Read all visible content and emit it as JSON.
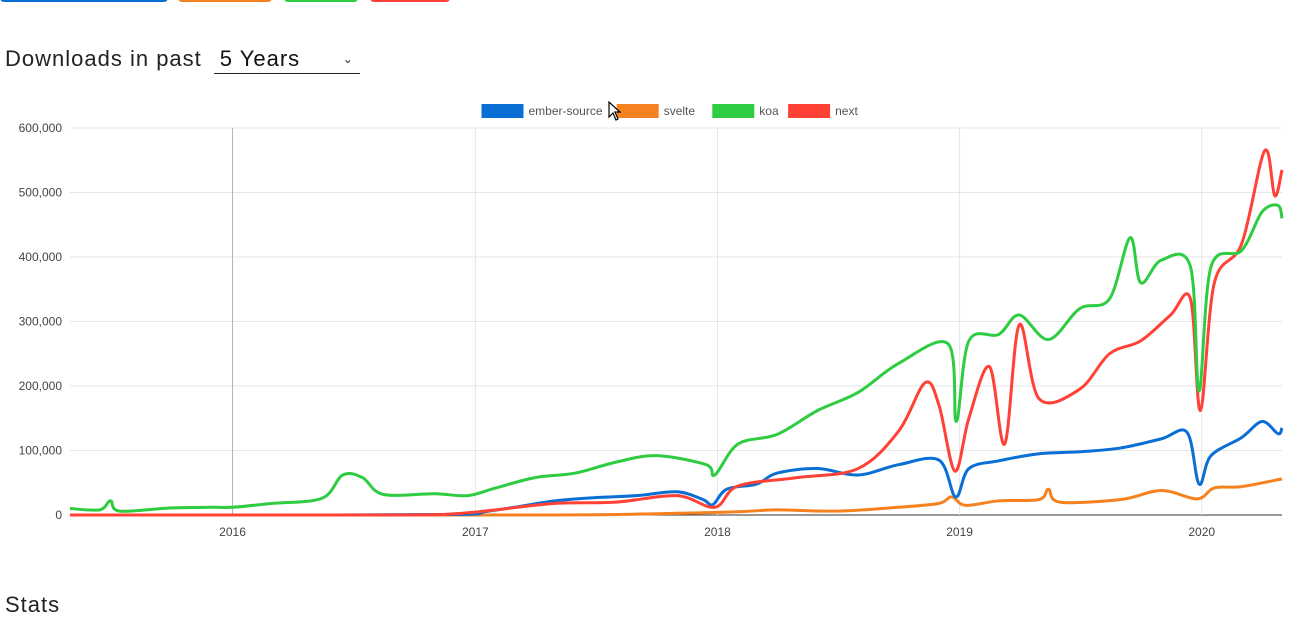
{
  "header": {
    "range_label": "Downloads in past",
    "range_value": "5 Years"
  },
  "tabs": [
    {
      "color": "#0a6fd4"
    },
    {
      "color": "#f6821f"
    },
    {
      "color": "#2ecc40"
    },
    {
      "color": "#ff4136"
    }
  ],
  "section_title": "Stats",
  "chart_data": {
    "type": "line",
    "xlabel": "",
    "ylabel": "",
    "ylim": [
      0,
      600000
    ],
    "yticks": [
      0,
      100000,
      200000,
      300000,
      400000,
      500000,
      600000
    ],
    "ytick_labels": [
      "0",
      "100,000",
      "200,000",
      "300,000",
      "400,000",
      "500,000",
      "600,000"
    ],
    "xticks": [
      "2016",
      "2017",
      "2018",
      "2019",
      "2020"
    ],
    "xrange": [
      "2015-05-01",
      "2020-05-01"
    ],
    "grid": true,
    "legend_position": "top-center",
    "series": [
      {
        "name": "ember-source",
        "color": "#0a6fd4",
        "points": [
          [
            "2015-05-01",
            0
          ],
          [
            "2016-06-01",
            0
          ],
          [
            "2016-12-15",
            1000
          ],
          [
            "2017-01-15",
            5000
          ],
          [
            "2017-03-01",
            12000
          ],
          [
            "2017-05-01",
            22000
          ],
          [
            "2017-07-01",
            27000
          ],
          [
            "2017-09-01",
            30000
          ],
          [
            "2017-11-01",
            36000
          ],
          [
            "2017-12-10",
            24000
          ],
          [
            "2017-12-25",
            16000
          ],
          [
            "2018-01-15",
            40000
          ],
          [
            "2018-03-01",
            48000
          ],
          [
            "2018-04-01",
            65000
          ],
          [
            "2018-06-01",
            72000
          ],
          [
            "2018-08-01",
            62000
          ],
          [
            "2018-10-01",
            78000
          ],
          [
            "2018-12-01",
            85000
          ],
          [
            "2018-12-26",
            28000
          ],
          [
            "2019-01-15",
            72000
          ],
          [
            "2019-03-01",
            84000
          ],
          [
            "2019-05-01",
            95000
          ],
          [
            "2019-07-01",
            98000
          ],
          [
            "2019-09-01",
            104000
          ],
          [
            "2019-11-01",
            118000
          ],
          [
            "2019-12-10",
            128000
          ],
          [
            "2019-12-28",
            48000
          ],
          [
            "2020-01-15",
            92000
          ],
          [
            "2020-03-01",
            120000
          ],
          [
            "2020-04-01",
            145000
          ],
          [
            "2020-04-25",
            126000
          ],
          [
            "2020-05-01",
            135000
          ]
        ]
      },
      {
        "name": "svelte",
        "color": "#f6821f",
        "points": [
          [
            "2015-05-01",
            0
          ],
          [
            "2017-04-01",
            0
          ],
          [
            "2017-10-01",
            2000
          ],
          [
            "2018-02-01",
            5000
          ],
          [
            "2018-04-01",
            8000
          ],
          [
            "2018-07-01",
            6000
          ],
          [
            "2018-10-01",
            12000
          ],
          [
            "2018-12-01",
            18000
          ],
          [
            "2018-12-20",
            28000
          ],
          [
            "2019-01-10",
            15000
          ],
          [
            "2019-03-01",
            22000
          ],
          [
            "2019-05-01",
            24000
          ],
          [
            "2019-05-15",
            40000
          ],
          [
            "2019-06-01",
            20000
          ],
          [
            "2019-09-01",
            24000
          ],
          [
            "2019-11-01",
            38000
          ],
          [
            "2019-12-25",
            25000
          ],
          [
            "2020-01-20",
            42000
          ],
          [
            "2020-03-01",
            44000
          ],
          [
            "2020-05-01",
            56000
          ]
        ]
      },
      {
        "name": "koa",
        "color": "#2ecc40",
        "points": [
          [
            "2015-05-01",
            10000
          ],
          [
            "2015-06-15",
            8000
          ],
          [
            "2015-07-01",
            22000
          ],
          [
            "2015-07-15",
            6000
          ],
          [
            "2015-10-01",
            11000
          ],
          [
            "2015-12-01",
            12000
          ],
          [
            "2016-01-01",
            12000
          ],
          [
            "2016-03-01",
            18000
          ],
          [
            "2016-05-15",
            26000
          ],
          [
            "2016-06-15",
            62000
          ],
          [
            "2016-07-15",
            58000
          ],
          [
            "2016-08-15",
            32000
          ],
          [
            "2016-11-01",
            33000
          ],
          [
            "2016-12-20",
            30000
          ],
          [
            "2017-02-01",
            42000
          ],
          [
            "2017-04-01",
            58000
          ],
          [
            "2017-06-01",
            65000
          ],
          [
            "2017-08-01",
            82000
          ],
          [
            "2017-10-01",
            92000
          ],
          [
            "2017-12-15",
            78000
          ],
          [
            "2017-12-28",
            62000
          ],
          [
            "2018-02-01",
            110000
          ],
          [
            "2018-04-01",
            125000
          ],
          [
            "2018-06-01",
            162000
          ],
          [
            "2018-08-01",
            190000
          ],
          [
            "2018-10-01",
            235000
          ],
          [
            "2018-12-15",
            265000
          ],
          [
            "2018-12-27",
            145000
          ],
          [
            "2019-01-15",
            270000
          ],
          [
            "2019-03-01",
            280000
          ],
          [
            "2019-04-01",
            310000
          ],
          [
            "2019-05-15",
            272000
          ],
          [
            "2019-07-01",
            320000
          ],
          [
            "2019-08-15",
            335000
          ],
          [
            "2019-09-15",
            430000
          ],
          [
            "2019-10-01",
            360000
          ],
          [
            "2019-11-01",
            395000
          ],
          [
            "2019-12-15",
            385000
          ],
          [
            "2019-12-28",
            192000
          ],
          [
            "2020-01-15",
            385000
          ],
          [
            "2020-03-01",
            410000
          ],
          [
            "2020-04-01",
            470000
          ],
          [
            "2020-04-25",
            480000
          ],
          [
            "2020-05-01",
            460000
          ]
        ]
      },
      {
        "name": "next",
        "color": "#ff4136",
        "points": [
          [
            "2015-05-01",
            0
          ],
          [
            "2016-09-01",
            0
          ],
          [
            "2016-12-01",
            2000
          ],
          [
            "2017-02-01",
            8000
          ],
          [
            "2017-05-01",
            18000
          ],
          [
            "2017-08-01",
            20000
          ],
          [
            "2017-11-01",
            30000
          ],
          [
            "2017-12-28",
            12000
          ],
          [
            "2018-02-01",
            45000
          ],
          [
            "2018-05-01",
            58000
          ],
          [
            "2018-08-01",
            72000
          ],
          [
            "2018-10-01",
            130000
          ],
          [
            "2018-11-10",
            205000
          ],
          [
            "2018-12-01",
            170000
          ],
          [
            "2018-12-25",
            68000
          ],
          [
            "2019-01-15",
            150000
          ],
          [
            "2019-02-15",
            230000
          ],
          [
            "2019-03-10",
            110000
          ],
          [
            "2019-04-01",
            295000
          ],
          [
            "2019-05-01",
            180000
          ],
          [
            "2019-07-01",
            195000
          ],
          [
            "2019-08-15",
            250000
          ],
          [
            "2019-10-01",
            270000
          ],
          [
            "2019-11-15",
            310000
          ],
          [
            "2019-12-15",
            335000
          ],
          [
            "2019-12-30",
            162000
          ],
          [
            "2020-01-20",
            360000
          ],
          [
            "2020-03-01",
            420000
          ],
          [
            "2020-04-05",
            565000
          ],
          [
            "2020-04-20",
            495000
          ],
          [
            "2020-05-01",
            535000
          ]
        ]
      }
    ]
  }
}
